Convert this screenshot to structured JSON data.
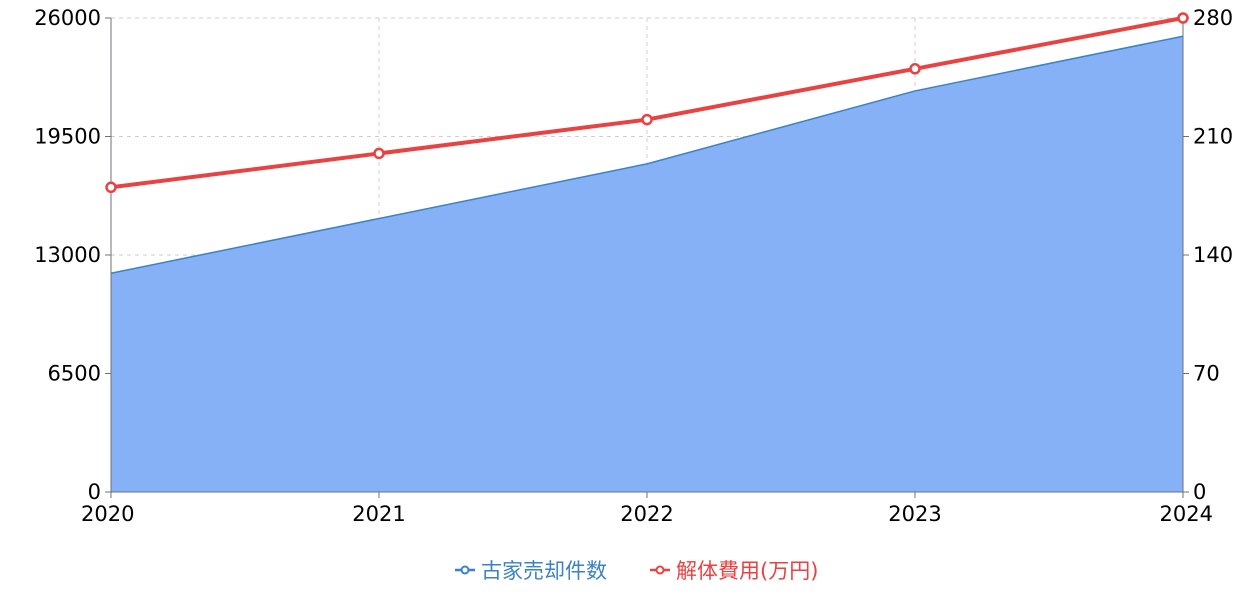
{
  "chart_data": {
    "type": "area+line",
    "categories": [
      "2020",
      "2021",
      "2022",
      "2023",
      "2024"
    ],
    "left_axis": {
      "ylim": [
        0,
        26000
      ],
      "ticks": [
        0,
        6500,
        13000,
        19500,
        26000
      ],
      "tick_labels": [
        "0",
        "6500",
        "13000",
        "19500",
        "26000"
      ]
    },
    "right_axis": {
      "ylim": [
        0,
        280
      ],
      "ticks": [
        0,
        70,
        140,
        210,
        280
      ],
      "tick_labels": [
        "0",
        "70",
        "140",
        "210",
        "280"
      ]
    },
    "series": [
      {
        "name": "古家売却件数",
        "type": "area",
        "axis": "left",
        "values": [
          12000,
          15000,
          18000,
          22000,
          25000
        ],
        "color": "#3b82c4",
        "fill": "#86b1f7"
      },
      {
        "name": "解体費用(万円)",
        "type": "line",
        "axis": "right",
        "values": [
          180,
          200,
          220,
          250,
          280
        ],
        "color": "#e84242"
      }
    ],
    "grid": true,
    "legend_position": "bottom-center"
  }
}
